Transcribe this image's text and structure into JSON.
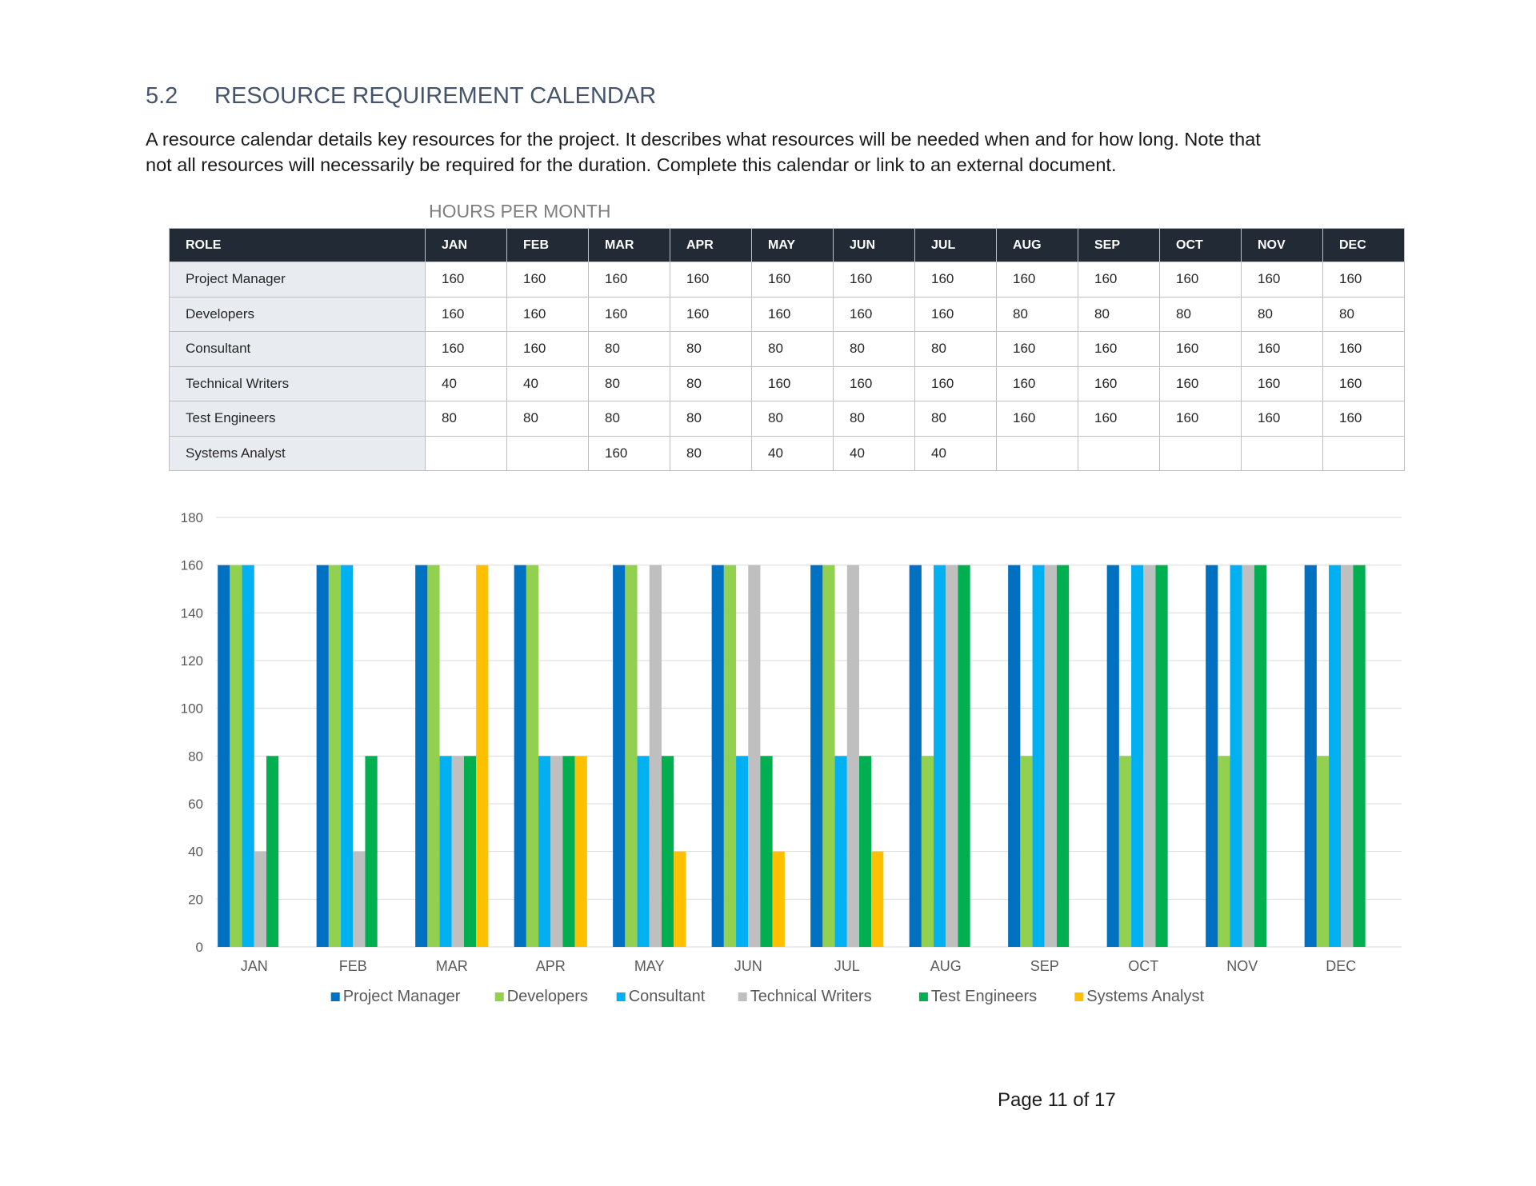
{
  "section": {
    "number": "5.2",
    "title": "RESOURCE REQUIREMENT CALENDAR"
  },
  "intro": {
    "line1": "A resource calendar details key resources for the project. It describes what resources will be needed when and for how long. Note that",
    "line2": "not all resources will necessarily be required for the duration. Complete this calendar or link to an external document."
  },
  "table": {
    "caption": "HOURS PER MONTH",
    "headers": [
      "ROLE",
      "JAN",
      "FEB",
      "MAR",
      "APR",
      "MAY",
      "JUN",
      "JUL",
      "AUG",
      "SEP",
      "OCT",
      "NOV",
      "DEC"
    ],
    "rows": [
      {
        "role": "Project Manager",
        "values": [
          "160",
          "160",
          "160",
          "160",
          "160",
          "160",
          "160",
          "160",
          "160",
          "160",
          "160",
          "160"
        ]
      },
      {
        "role": "Developers",
        "values": [
          "160",
          "160",
          "160",
          "160",
          "160",
          "160",
          "160",
          "80",
          "80",
          "80",
          "80",
          "80"
        ]
      },
      {
        "role": "Consultant",
        "values": [
          "160",
          "160",
          "80",
          "80",
          "80",
          "80",
          "80",
          "160",
          "160",
          "160",
          "160",
          "160"
        ]
      },
      {
        "role": "Technical Writers",
        "values": [
          "40",
          "40",
          "80",
          "80",
          "160",
          "160",
          "160",
          "160",
          "160",
          "160",
          "160",
          "160"
        ]
      },
      {
        "role": "Test Engineers",
        "values": [
          "80",
          "80",
          "80",
          "80",
          "80",
          "80",
          "80",
          "160",
          "160",
          "160",
          "160",
          "160"
        ]
      },
      {
        "role": "Systems Analyst",
        "values": [
          "",
          "",
          "160",
          "80",
          "40",
          "40",
          "40",
          "",
          "",
          "",
          "",
          ""
        ]
      }
    ]
  },
  "chart_data": {
    "type": "bar",
    "categories": [
      "JAN",
      "FEB",
      "MAR",
      "APR",
      "MAY",
      "JUN",
      "JUL",
      "AUG",
      "SEP",
      "OCT",
      "NOV",
      "DEC"
    ],
    "ylim": [
      0,
      180
    ],
    "yticks": [
      0,
      20,
      40,
      60,
      80,
      100,
      120,
      140,
      160,
      180
    ],
    "grid": true,
    "legend_position": "bottom",
    "series": [
      {
        "name": "Project Manager",
        "color": "#0070c0",
        "values": [
          160,
          160,
          160,
          160,
          160,
          160,
          160,
          160,
          160,
          160,
          160,
          160
        ]
      },
      {
        "name": "Developers",
        "color": "#92d050",
        "values": [
          160,
          160,
          160,
          160,
          160,
          160,
          160,
          80,
          80,
          80,
          80,
          80
        ]
      },
      {
        "name": "Consultant",
        "color": "#00b0f0",
        "values": [
          160,
          160,
          80,
          80,
          80,
          80,
          80,
          160,
          160,
          160,
          160,
          160
        ]
      },
      {
        "name": "Technical Writers",
        "color": "#bfbfbf",
        "values": [
          40,
          40,
          80,
          80,
          160,
          160,
          160,
          160,
          160,
          160,
          160,
          160
        ]
      },
      {
        "name": "Test Engineers",
        "color": "#00b050",
        "values": [
          80,
          80,
          80,
          80,
          80,
          80,
          80,
          160,
          160,
          160,
          160,
          160
        ]
      },
      {
        "name": "Systems Analyst",
        "color": "#ffc000",
        "values": [
          0,
          0,
          160,
          80,
          40,
          40,
          40,
          0,
          0,
          0,
          0,
          0
        ]
      }
    ]
  },
  "footer": {
    "page": "Page 11 of 17"
  }
}
